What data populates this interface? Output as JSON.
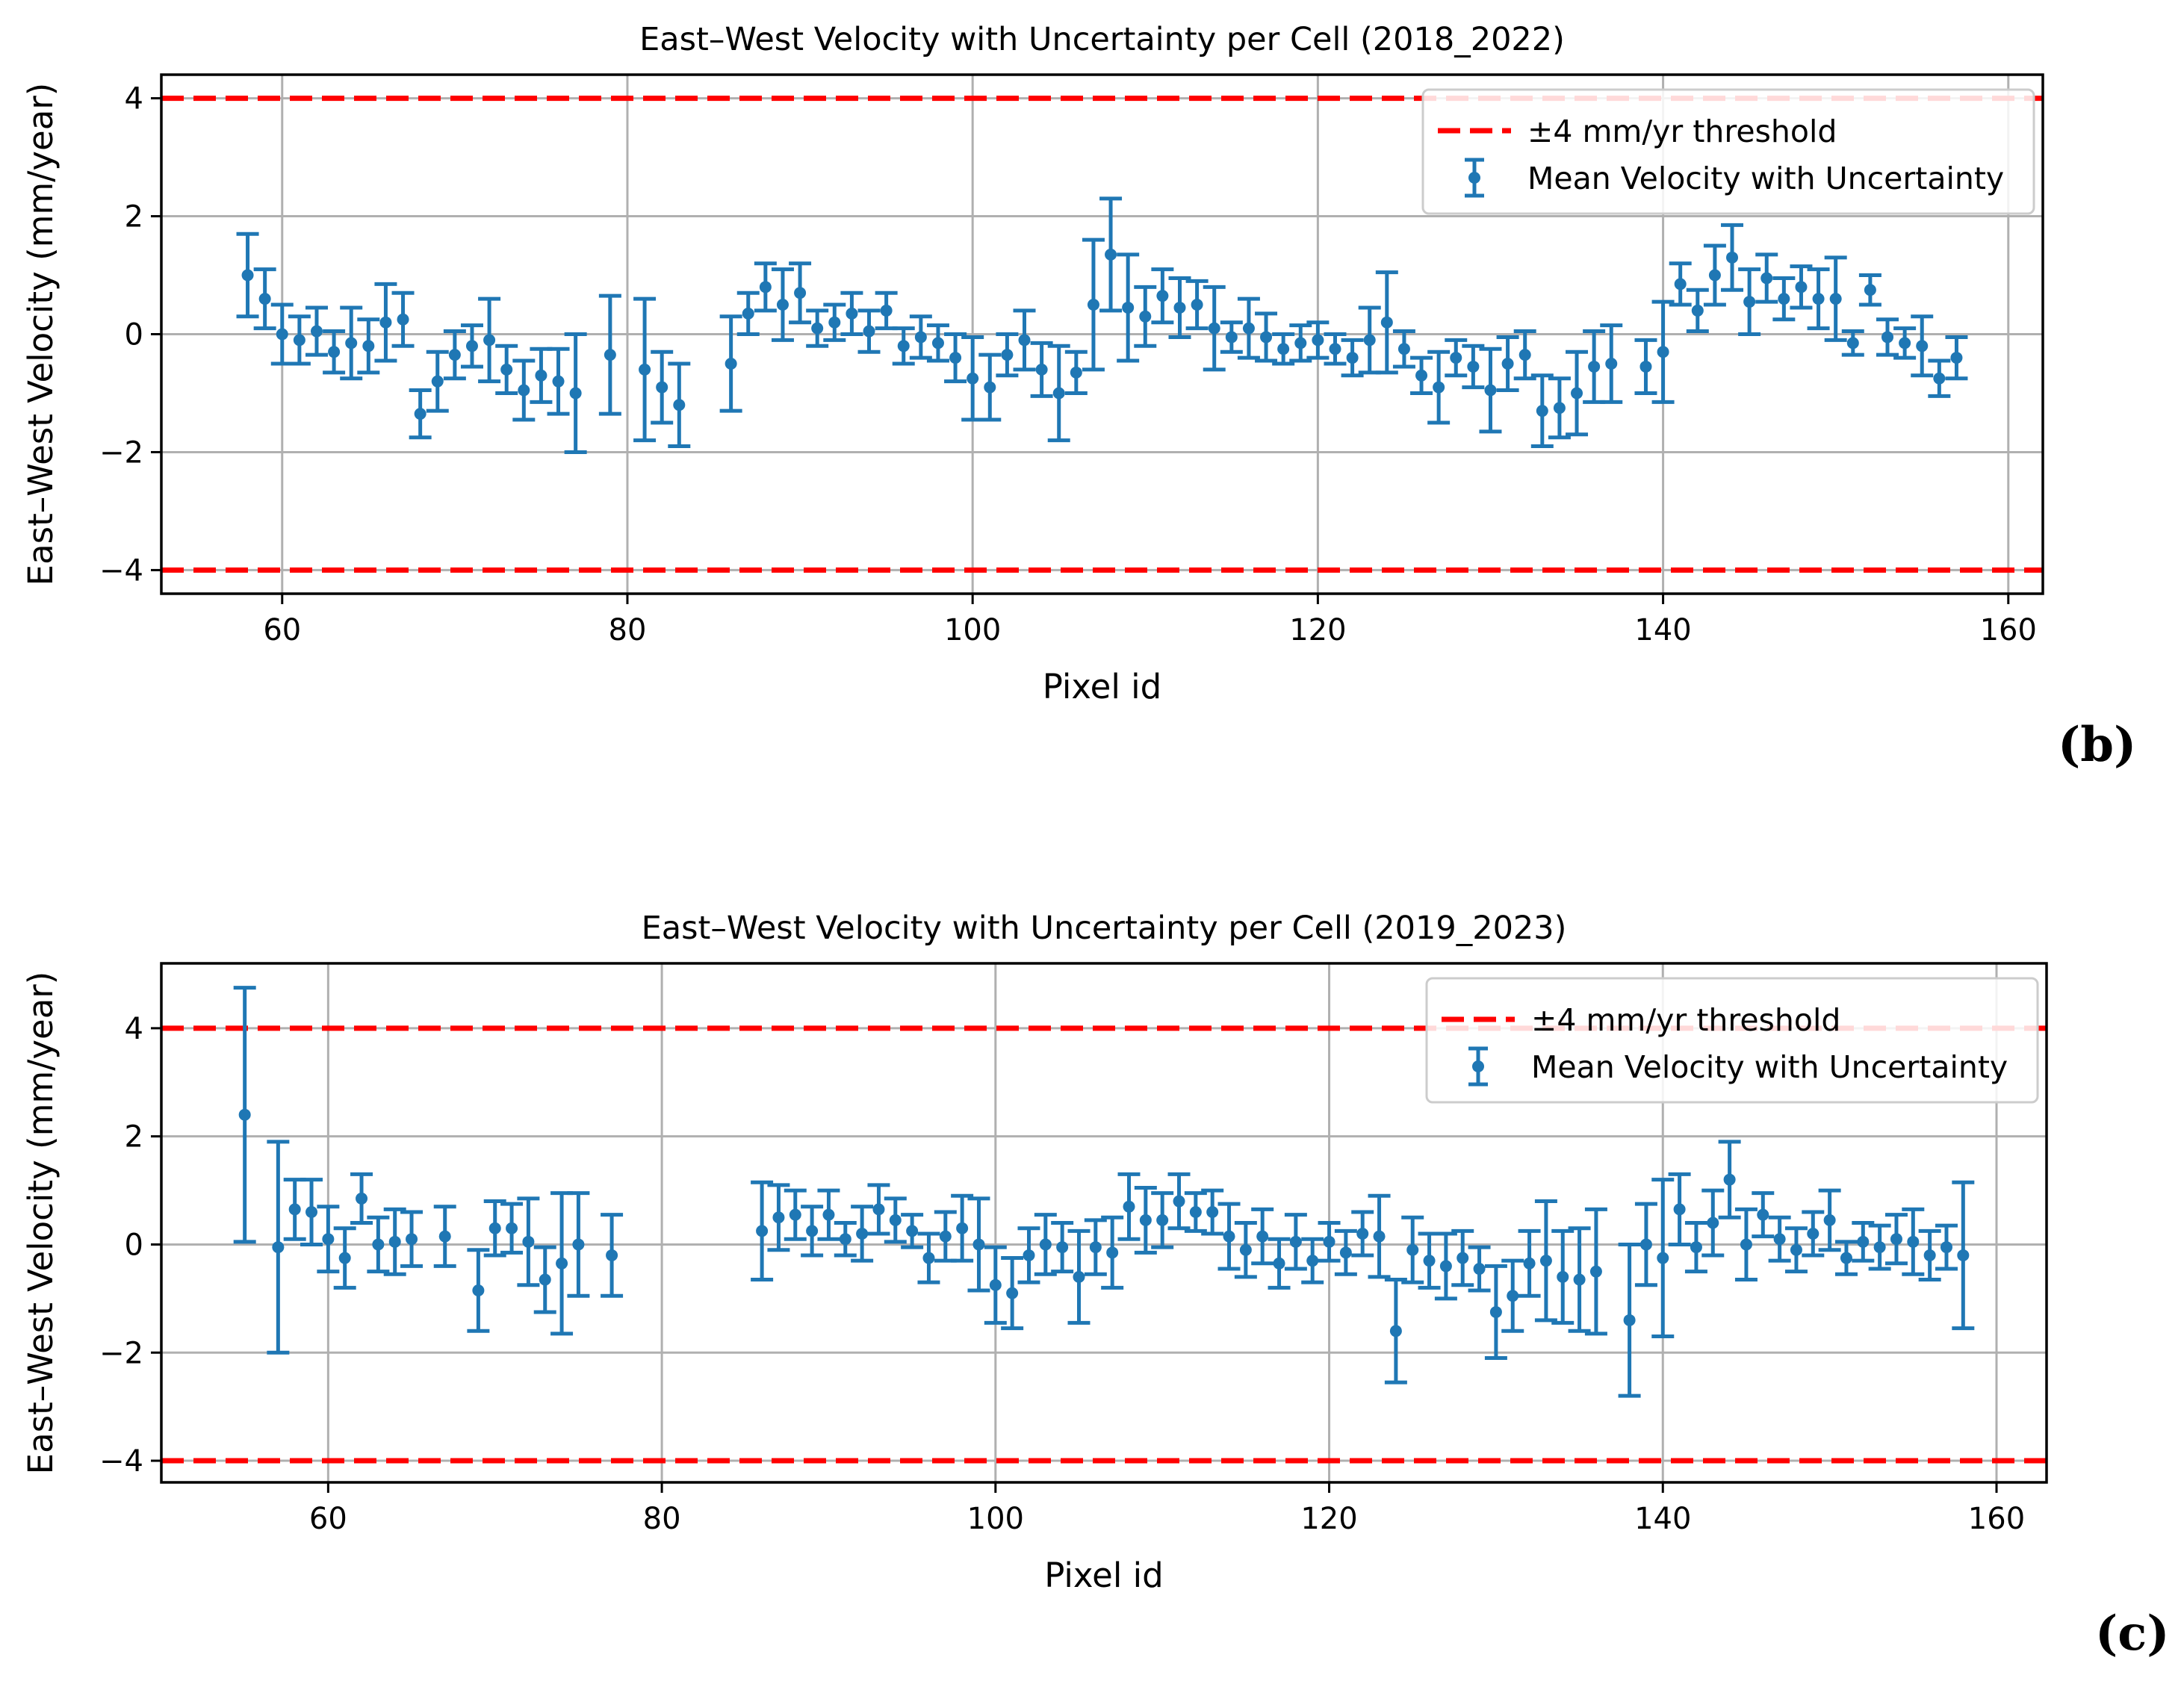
{
  "panel_labels": [
    "(b)",
    "(c)"
  ],
  "legend_entries": [
    "±4 mm/yr threshold",
    "Mean Velocity with Uncertainty"
  ],
  "colors": {
    "series": "#1f77b4",
    "threshold": "#ff0000",
    "grid": "#b0b0b0"
  },
  "chart_data": [
    {
      "type": "scatter",
      "title": "East–West Velocity with Uncertainty per Cell (2018_2022)",
      "xlabel": "Pixel id",
      "ylabel": "East–West Velocity (mm/year)",
      "xlim": [
        53,
        162
      ],
      "ylim": [
        -4.4,
        4.4
      ],
      "xticks": [
        60,
        80,
        100,
        120,
        140,
        160
      ],
      "yticks": [
        -4,
        -2,
        0,
        2,
        4
      ],
      "grid": true,
      "legend_position": "top-right",
      "thresholds": [
        4,
        -4
      ],
      "series": [
        {
          "name": "Mean Velocity with Uncertainty",
          "points": [
            [
              58,
              1.0,
              0.7
            ],
            [
              59,
              0.6,
              0.5
            ],
            [
              60,
              0.0,
              0.5
            ],
            [
              61,
              -0.1,
              0.4
            ],
            [
              62,
              0.05,
              0.4
            ],
            [
              63,
              -0.3,
              0.35
            ],
            [
              64,
              -0.15,
              0.6
            ],
            [
              65,
              -0.2,
              0.45
            ],
            [
              66,
              0.2,
              0.65
            ],
            [
              67,
              0.25,
              0.45
            ],
            [
              68,
              -1.35,
              0.4
            ],
            [
              69,
              -0.8,
              0.5
            ],
            [
              70,
              -0.35,
              0.4
            ],
            [
              71,
              -0.2,
              0.35
            ],
            [
              72,
              -0.1,
              0.7
            ],
            [
              73,
              -0.6,
              0.4
            ],
            [
              74,
              -0.95,
              0.5
            ],
            [
              75,
              -0.7,
              0.45
            ],
            [
              76,
              -0.8,
              0.55
            ],
            [
              77,
              -1.0,
              1.0
            ],
            [
              79,
              -0.35,
              1.0
            ],
            [
              81,
              -0.6,
              1.2
            ],
            [
              82,
              -0.9,
              0.6
            ],
            [
              83,
              -1.2,
              0.7
            ],
            [
              86,
              -0.5,
              0.8
            ],
            [
              87,
              0.35,
              0.35
            ],
            [
              88,
              0.8,
              0.4
            ],
            [
              89,
              0.5,
              0.6
            ],
            [
              90,
              0.7,
              0.5
            ],
            [
              91,
              0.1,
              0.3
            ],
            [
              92,
              0.2,
              0.3
            ],
            [
              93,
              0.35,
              0.35
            ],
            [
              94,
              0.05,
              0.35
            ],
            [
              95,
              0.4,
              0.3
            ],
            [
              96,
              -0.2,
              0.3
            ],
            [
              97,
              -0.05,
              0.35
            ],
            [
              98,
              -0.15,
              0.3
            ],
            [
              99,
              -0.4,
              0.4
            ],
            [
              100,
              -0.75,
              0.7
            ],
            [
              101,
              -0.9,
              0.55
            ],
            [
              102,
              -0.35,
              0.35
            ],
            [
              103,
              -0.1,
              0.5
            ],
            [
              104,
              -0.6,
              0.45
            ],
            [
              105,
              -1.0,
              0.8
            ],
            [
              106,
              -0.65,
              0.35
            ],
            [
              107,
              0.5,
              1.1
            ],
            [
              108,
              1.35,
              0.95
            ],
            [
              109,
              0.45,
              0.9
            ],
            [
              110,
              0.3,
              0.5
            ],
            [
              111,
              0.65,
              0.45
            ],
            [
              112,
              0.45,
              0.5
            ],
            [
              113,
              0.5,
              0.4
            ],
            [
              114,
              0.1,
              0.7
            ],
            [
              115,
              -0.05,
              0.25
            ],
            [
              116,
              0.1,
              0.5
            ],
            [
              117,
              -0.05,
              0.4
            ],
            [
              118,
              -0.25,
              0.25
            ],
            [
              119,
              -0.15,
              0.3
            ],
            [
              120,
              -0.1,
              0.3
            ],
            [
              121,
              -0.25,
              0.25
            ],
            [
              122,
              -0.4,
              0.3
            ],
            [
              123,
              -0.1,
              0.55
            ],
            [
              124,
              0.2,
              0.85
            ],
            [
              125,
              -0.25,
              0.3
            ],
            [
              126,
              -0.7,
              0.3
            ],
            [
              127,
              -0.9,
              0.6
            ],
            [
              128,
              -0.4,
              0.3
            ],
            [
              129,
              -0.55,
              0.35
            ],
            [
              130,
              -0.95,
              0.7
            ],
            [
              131,
              -0.5,
              0.45
            ],
            [
              132,
              -0.35,
              0.4
            ],
            [
              133,
              -1.3,
              0.6
            ],
            [
              134,
              -1.25,
              0.5
            ],
            [
              135,
              -1.0,
              0.7
            ],
            [
              136,
              -0.55,
              0.6
            ],
            [
              137,
              -0.5,
              0.65
            ],
            [
              139,
              -0.55,
              0.45
            ],
            [
              140,
              -0.3,
              0.85
            ],
            [
              141,
              0.85,
              0.35
            ],
            [
              142,
              0.4,
              0.35
            ],
            [
              143,
              1.0,
              0.5
            ],
            [
              144,
              1.3,
              0.55
            ],
            [
              145,
              0.55,
              0.55
            ],
            [
              146,
              0.95,
              0.4
            ],
            [
              147,
              0.6,
              0.35
            ],
            [
              148,
              0.8,
              0.35
            ],
            [
              149,
              0.6,
              0.5
            ],
            [
              150,
              0.6,
              0.7
            ],
            [
              151,
              -0.15,
              0.2
            ],
            [
              152,
              0.75,
              0.25
            ],
            [
              153,
              -0.05,
              0.3
            ],
            [
              154,
              -0.15,
              0.25
            ],
            [
              155,
              -0.2,
              0.5
            ],
            [
              156,
              -0.75,
              0.3
            ],
            [
              157,
              -0.4,
              0.35
            ]
          ]
        }
      ]
    },
    {
      "type": "scatter",
      "title": "East–West Velocity with Uncertainty per Cell (2019_2023)",
      "xlabel": "Pixel id",
      "ylabel": "East–West Velocity (mm/year)",
      "xlim": [
        50,
        163
      ],
      "ylim": [
        -4.4,
        5.2
      ],
      "xticks": [
        60,
        80,
        100,
        120,
        140,
        160
      ],
      "yticks": [
        -4,
        -2,
        0,
        2,
        4
      ],
      "grid": true,
      "legend_position": "top-right",
      "thresholds": [
        4,
        -4
      ],
      "series": [
        {
          "name": "Mean Velocity with Uncertainty",
          "points": [
            [
              55,
              2.4,
              2.35
            ],
            [
              57,
              -0.05,
              1.95
            ],
            [
              58,
              0.65,
              0.55
            ],
            [
              59,
              0.6,
              0.6
            ],
            [
              60,
              0.1,
              0.6
            ],
            [
              61,
              -0.25,
              0.55
            ],
            [
              62,
              0.85,
              0.45
            ],
            [
              63,
              0.0,
              0.5
            ],
            [
              64,
              0.05,
              0.6
            ],
            [
              65,
              0.1,
              0.5
            ],
            [
              67,
              0.15,
              0.55
            ],
            [
              69,
              -0.85,
              0.75
            ],
            [
              70,
              0.3,
              0.5
            ],
            [
              71,
              0.3,
              0.45
            ],
            [
              72,
              0.05,
              0.8
            ],
            [
              73,
              -0.65,
              0.6
            ],
            [
              74,
              -0.35,
              1.3
            ],
            [
              75,
              0.0,
              0.95
            ],
            [
              77,
              -0.2,
              0.75
            ],
            [
              86,
              0.25,
              0.9
            ],
            [
              87,
              0.5,
              0.6
            ],
            [
              88,
              0.55,
              0.45
            ],
            [
              89,
              0.25,
              0.45
            ],
            [
              90,
              0.55,
              0.45
            ],
            [
              91,
              0.1,
              0.3
            ],
            [
              92,
              0.2,
              0.5
            ],
            [
              93,
              0.65,
              0.45
            ],
            [
              94,
              0.45,
              0.4
            ],
            [
              95,
              0.25,
              0.3
            ],
            [
              96,
              -0.25,
              0.45
            ],
            [
              97,
              0.15,
              0.45
            ],
            [
              98,
              0.3,
              0.6
            ],
            [
              99,
              0.0,
              0.85
            ],
            [
              100,
              -0.75,
              0.7
            ],
            [
              101,
              -0.9,
              0.65
            ],
            [
              102,
              -0.2,
              0.5
            ],
            [
              103,
              0.0,
              0.55
            ],
            [
              104,
              -0.05,
              0.45
            ],
            [
              105,
              -0.6,
              0.85
            ],
            [
              106,
              -0.05,
              0.5
            ],
            [
              107,
              -0.15,
              0.65
            ],
            [
              108,
              0.7,
              0.6
            ],
            [
              109,
              0.45,
              0.6
            ],
            [
              110,
              0.45,
              0.5
            ],
            [
              111,
              0.8,
              0.5
            ],
            [
              112,
              0.6,
              0.35
            ],
            [
              113,
              0.6,
              0.4
            ],
            [
              114,
              0.15,
              0.6
            ],
            [
              115,
              -0.1,
              0.5
            ],
            [
              116,
              0.15,
              0.5
            ],
            [
              117,
              -0.35,
              0.45
            ],
            [
              118,
              0.05,
              0.5
            ],
            [
              119,
              -0.3,
              0.4
            ],
            [
              120,
              0.05,
              0.35
            ],
            [
              121,
              -0.15,
              0.4
            ],
            [
              122,
              0.2,
              0.4
            ],
            [
              123,
              0.15,
              0.75
            ],
            [
              124,
              -1.6,
              0.95
            ],
            [
              125,
              -0.1,
              0.6
            ],
            [
              126,
              -0.3,
              0.5
            ],
            [
              127,
              -0.4,
              0.6
            ],
            [
              128,
              -0.25,
              0.5
            ],
            [
              129,
              -0.45,
              0.4
            ],
            [
              130,
              -1.25,
              0.85
            ],
            [
              131,
              -0.95,
              0.65
            ],
            [
              132,
              -0.35,
              0.6
            ],
            [
              133,
              -0.3,
              1.1
            ],
            [
              134,
              -0.6,
              0.85
            ],
            [
              135,
              -0.65,
              0.95
            ],
            [
              136,
              -0.5,
              1.15
            ],
            [
              138,
              -1.4,
              1.4
            ],
            [
              139,
              0.0,
              0.75
            ],
            [
              140,
              -0.25,
              1.45
            ],
            [
              141,
              0.65,
              0.65
            ],
            [
              142,
              -0.05,
              0.45
            ],
            [
              143,
              0.4,
              0.6
            ],
            [
              144,
              1.2,
              0.7
            ],
            [
              145,
              0.0,
              0.65
            ],
            [
              146,
              0.55,
              0.4
            ],
            [
              147,
              0.1,
              0.4
            ],
            [
              148,
              -0.1,
              0.4
            ],
            [
              149,
              0.2,
              0.4
            ],
            [
              150,
              0.45,
              0.55
            ],
            [
              151,
              -0.25,
              0.3
            ],
            [
              152,
              0.05,
              0.35
            ],
            [
              153,
              -0.05,
              0.4
            ],
            [
              154,
              0.1,
              0.45
            ],
            [
              155,
              0.05,
              0.6
            ],
            [
              156,
              -0.2,
              0.45
            ],
            [
              157,
              -0.05,
              0.4
            ],
            [
              158,
              -0.2,
              1.35
            ]
          ]
        }
      ]
    }
  ]
}
